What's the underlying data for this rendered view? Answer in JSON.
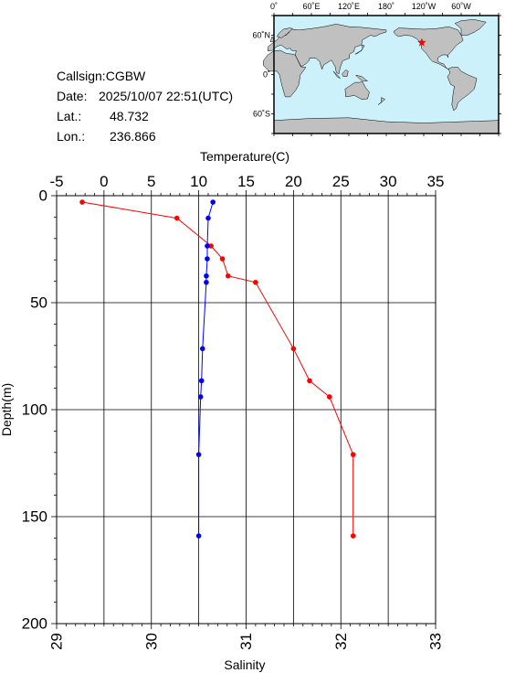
{
  "station": {
    "callsign_label": "Callsign:",
    "callsign": "CGBW",
    "date_label": "Date:",
    "date": "2025/10/07 22:51(UTC)",
    "lat_label": "Lat.:",
    "lat": "48.732",
    "lon_label": "Lon.:",
    "lon": "236.866"
  },
  "map": {
    "top_ticks": [
      "0˚",
      "60˚E",
      "120˚E",
      "180˚",
      "120˚W",
      "60˚W"
    ],
    "left_ticks": [
      "60˚N",
      "0˚",
      "60˚S"
    ],
    "ocean_color": "#cdf1fa",
    "land_color": "#c0c0c0",
    "marker_color": "#ff0000",
    "marker_lon": 236.866,
    "marker_lat": 48.732
  },
  "chart_data": {
    "type": "line",
    "top_axis": {
      "label": "Temperature(C)",
      "range": [
        -5,
        35
      ],
      "ticks": [
        -5,
        0,
        5,
        10,
        15,
        20,
        25,
        30,
        35
      ]
    },
    "bottom_axis": {
      "label": "Salinity",
      "range": [
        29,
        33
      ],
      "ticks": [
        29,
        30,
        31,
        32,
        33
      ]
    },
    "y_axis": {
      "label": "Depth(m)",
      "range": [
        0,
        200
      ],
      "ticks": [
        0,
        50,
        100,
        150,
        200
      ],
      "inverted": true
    },
    "grid": true,
    "series": [
      {
        "axis": "temperature",
        "color": "#ff0000",
        "points": [
          {
            "x": -2.3,
            "y": 3
          },
          {
            "x": 7.7,
            "y": 10.5
          },
          {
            "x": 11.3,
            "y": 23.5
          },
          {
            "x": 12.5,
            "y": 29.5
          },
          {
            "x": 13.1,
            "y": 37.5
          },
          {
            "x": 16.0,
            "y": 40.5
          },
          {
            "x": 20.0,
            "y": 71.5
          },
          {
            "x": 21.7,
            "y": 86.5
          },
          {
            "x": 23.8,
            "y": 94
          },
          {
            "x": 26.3,
            "y": 121
          },
          {
            "x": 26.3,
            "y": 159
          }
        ]
      },
      {
        "axis": "salinity",
        "color": "#0000ff",
        "points": [
          {
            "x": 30.65,
            "y": 3
          },
          {
            "x": 30.6,
            "y": 10.5
          },
          {
            "x": 30.59,
            "y": 23.5
          },
          {
            "x": 30.59,
            "y": 29.5
          },
          {
            "x": 30.58,
            "y": 37.5
          },
          {
            "x": 30.58,
            "y": 40.5
          },
          {
            "x": 30.54,
            "y": 71.5
          },
          {
            "x": 30.53,
            "y": 86.5
          },
          {
            "x": 30.52,
            "y": 94
          },
          {
            "x": 30.5,
            "y": 121
          },
          {
            "x": 30.5,
            "y": 159
          }
        ]
      }
    ]
  }
}
